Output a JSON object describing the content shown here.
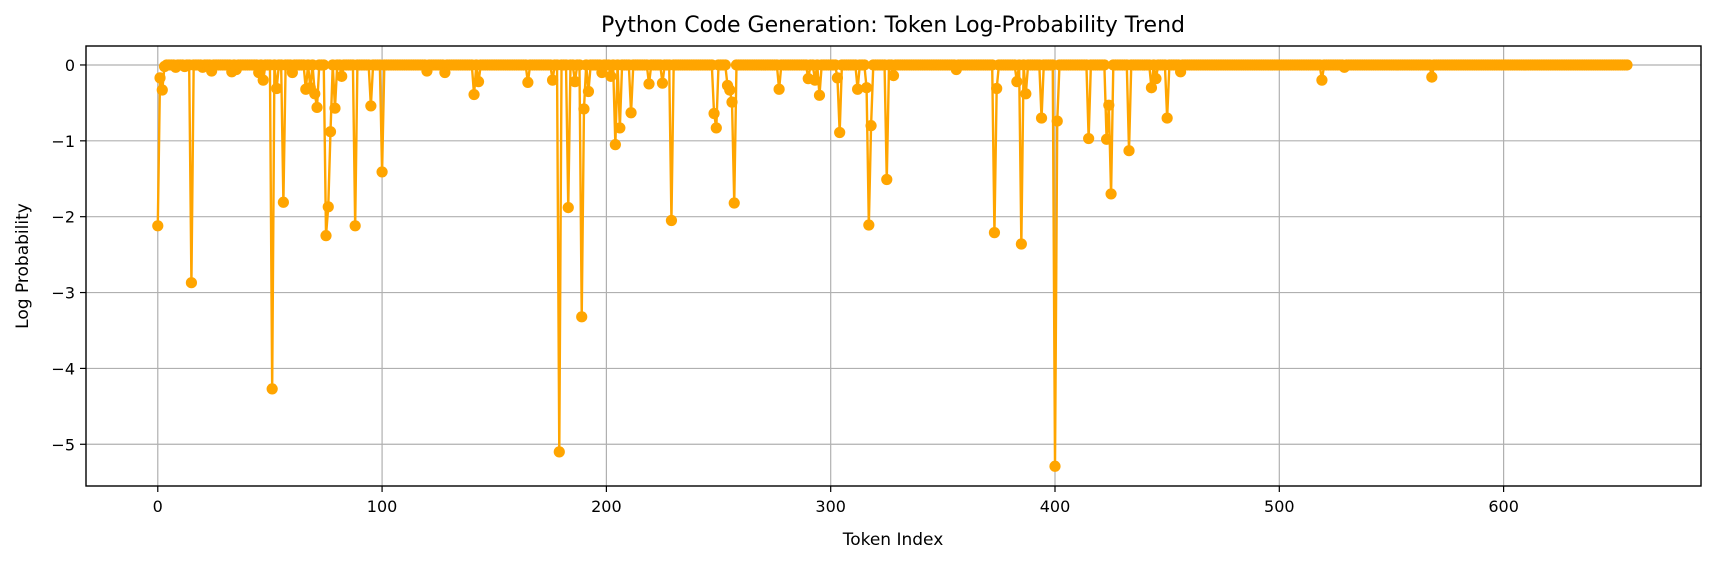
{
  "chart_data": {
    "type": "line",
    "title": "Python Code Generation: Token Log-Probability Trend",
    "xlabel": "Token Index",
    "ylabel": "Log Probability",
    "xlim": [
      -32,
      688
    ],
    "ylim": [
      -5.55,
      0.25
    ],
    "xticks": [
      0,
      100,
      200,
      300,
      400,
      500,
      600
    ],
    "yticks": [
      0,
      -1,
      -2,
      -3,
      -4,
      -5
    ],
    "xtick_labels": [
      "0",
      "100",
      "200",
      "300",
      "400",
      "500",
      "600"
    ],
    "ytick_labels": [
      "0",
      "−1",
      "−2",
      "−3",
      "−4",
      "−5"
    ],
    "grid": true,
    "marker": "circle",
    "color": "#FFA500",
    "n_points": 656,
    "baseline_value": 0.0,
    "series": [
      {
        "points": [
          [
            0,
            -2.12
          ],
          [
            1,
            -0.17
          ],
          [
            2,
            -0.33
          ],
          [
            3,
            -0.02
          ],
          [
            8,
            -0.03
          ],
          [
            12,
            -0.02
          ],
          [
            15,
            -2.87
          ],
          [
            20,
            -0.03
          ],
          [
            24,
            -0.08
          ],
          [
            33,
            -0.09
          ],
          [
            35,
            -0.06
          ],
          [
            45,
            -0.1
          ],
          [
            47,
            -0.2
          ],
          [
            51,
            -4.27
          ],
          [
            53,
            -0.31
          ],
          [
            56,
            -1.81
          ],
          [
            60,
            -0.1
          ],
          [
            66,
            -0.32
          ],
          [
            68,
            -0.3
          ],
          [
            70,
            -0.38
          ],
          [
            71,
            -0.56
          ],
          [
            75,
            -2.25
          ],
          [
            76,
            -1.87
          ],
          [
            77,
            -0.88
          ],
          [
            79,
            -0.57
          ],
          [
            82,
            -0.15
          ],
          [
            88,
            -2.12
          ],
          [
            95,
            -0.54
          ],
          [
            100,
            -1.41
          ],
          [
            120,
            -0.08
          ],
          [
            128,
            -0.1
          ],
          [
            141,
            -0.39
          ],
          [
            143,
            -0.22
          ],
          [
            165,
            -0.23
          ],
          [
            176,
            -0.2
          ],
          [
            179,
            -5.1
          ],
          [
            183,
            -1.88
          ],
          [
            186,
            -0.22
          ],
          [
            189,
            -3.32
          ],
          [
            190,
            -0.58
          ],
          [
            192,
            -0.35
          ],
          [
            198,
            -0.1
          ],
          [
            202,
            -0.15
          ],
          [
            204,
            -1.05
          ],
          [
            206,
            -0.83
          ],
          [
            211,
            -0.63
          ],
          [
            219,
            -0.25
          ],
          [
            225,
            -0.24
          ],
          [
            229,
            -2.05
          ],
          [
            248,
            -0.64
          ],
          [
            249,
            -0.83
          ],
          [
            254,
            -0.27
          ],
          [
            255,
            -0.33
          ],
          [
            256,
            -0.49
          ],
          [
            257,
            -1.82
          ],
          [
            277,
            -0.32
          ],
          [
            290,
            -0.18
          ],
          [
            293,
            -0.2
          ],
          [
            295,
            -0.4
          ],
          [
            303,
            -0.17
          ],
          [
            304,
            -0.89
          ],
          [
            312,
            -0.32
          ],
          [
            316,
            -0.3
          ],
          [
            317,
            -2.11
          ],
          [
            318,
            -0.8
          ],
          [
            325,
            -1.51
          ],
          [
            328,
            -0.14
          ],
          [
            356,
            -0.06
          ],
          [
            373,
            -2.21
          ],
          [
            374,
            -0.31
          ],
          [
            383,
            -0.22
          ],
          [
            385,
            -2.36
          ],
          [
            387,
            -0.38
          ],
          [
            394,
            -0.7
          ],
          [
            400,
            -5.29
          ],
          [
            401,
            -0.74
          ],
          [
            415,
            -0.97
          ],
          [
            423,
            -0.98
          ],
          [
            424,
            -0.53
          ],
          [
            425,
            -1.7
          ],
          [
            433,
            -1.13
          ],
          [
            443,
            -0.3
          ],
          [
            445,
            -0.18
          ],
          [
            450,
            -0.7
          ],
          [
            456,
            -0.09
          ],
          [
            519,
            -0.2
          ],
          [
            529,
            -0.03
          ],
          [
            568,
            -0.16
          ]
        ]
      }
    ]
  }
}
